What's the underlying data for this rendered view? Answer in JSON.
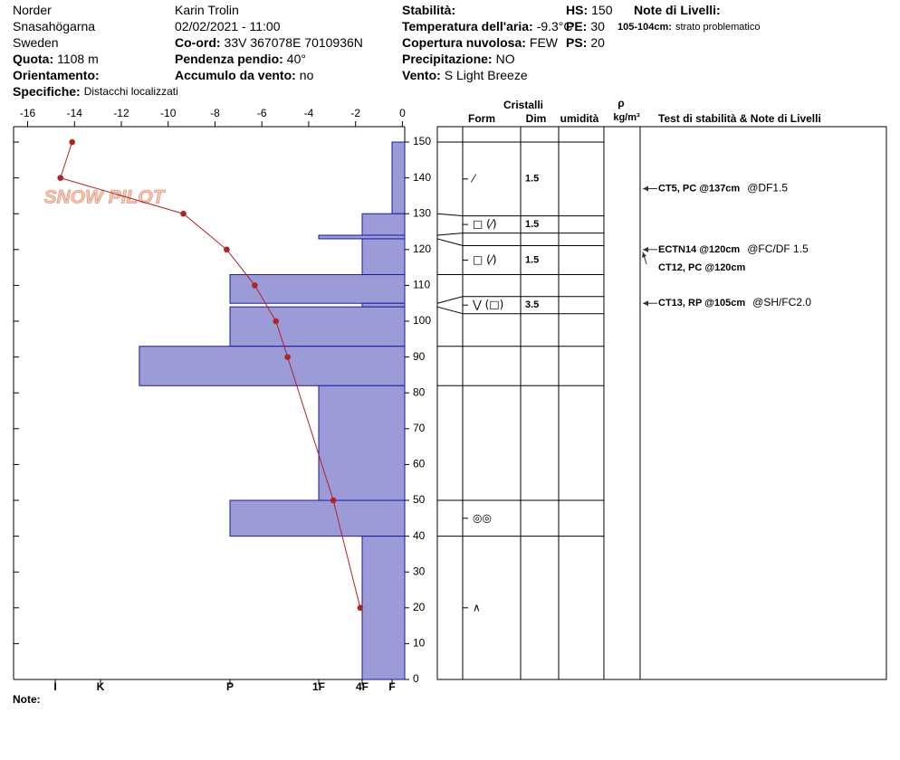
{
  "header": {
    "items": [
      {
        "value": "Norder"
      },
      {
        "value": "Snasahögarna"
      },
      {
        "value": "Sweden"
      },
      {
        "label": "Quota:",
        "value": "1108 m"
      },
      {
        "label": "Orientamento:"
      },
      {
        "label": "Specifiche:",
        "value": "Distacchi localizzati"
      },
      {
        "value": "Karin  Trolin"
      },
      {
        "value": "02/02/2021 - 11:00"
      },
      {
        "label": "Co-ord:",
        "value": "33V 367078E 7010936N"
      },
      {
        "label": "Pendenza pendio:",
        "value": "40°"
      },
      {
        "label": "Accumulo da vento:",
        "value": "no"
      },
      {
        "label": "Stabilità:"
      },
      {
        "label": "Temperatura dell'aria:",
        "value": "-9.3°C"
      },
      {
        "label": "Copertura nuvolosa:",
        "value": "FEW"
      },
      {
        "label": "Precipitazione:",
        "value": "NO"
      },
      {
        "label": "Vento:",
        "value": "S Light Breeze"
      },
      {
        "label": "HS:",
        "value": "150"
      },
      {
        "label": "PE:",
        "value": "30"
      },
      {
        "label": "PS:",
        "value": "20"
      },
      {
        "label": "Note di Livelli:"
      },
      {
        "label": "105-104cm:",
        "value": "strato problematico"
      }
    ]
  },
  "watermark": "SNOW PILOT",
  "chart_data": [
    {
      "type": "temperature-profile",
      "color": "#b22222",
      "depths": [
        150,
        140,
        130,
        120,
        110,
        100,
        90,
        50,
        20
      ],
      "temperatures": [
        -14.1,
        -14.6,
        -9.35,
        -7.5,
        -6.3,
        -5.4,
        -4.9,
        -2.95,
        -1.8
      ],
      "xlim": [
        -16.6,
        0.1
      ],
      "xticks": [
        -16,
        -14,
        -12,
        -10,
        -8,
        -6,
        -4,
        -2,
        0
      ],
      "ylim": [
        0,
        154.3
      ],
      "yticks": [
        0,
        10,
        20,
        30,
        40,
        50,
        60,
        70,
        80,
        90,
        100,
        110,
        120,
        130,
        140,
        150
      ]
    },
    {
      "type": "hardness-profile",
      "color": "#9b9bd8",
      "tops": [
        150,
        130,
        124,
        123,
        113,
        105,
        104,
        93,
        82,
        50,
        40
      ],
      "bottoms": [
        130,
        124,
        123,
        113,
        105,
        104,
        93,
        82,
        50,
        40,
        0
      ],
      "values": [
        1,
        2,
        3,
        2,
        4,
        2,
        4,
        4.7,
        3,
        4,
        2
      ],
      "xlim": [
        7,
        0
      ],
      "xticks": [
        {
          "value": 6,
          "label": "I"
        },
        {
          "value": 5,
          "label": "K"
        },
        {
          "value": 4,
          "label": "P"
        },
        {
          "value": 3,
          "label": "1F"
        },
        {
          "value": 2,
          "label": "4F"
        },
        {
          "value": 1,
          "label": "F"
        }
      ]
    }
  ],
  "table": {
    "headers": {
      "group": "Cristalli",
      "form": "Form",
      "size": "Dim",
      "moisture": "umidità",
      "density": "ρ",
      "density_unit": "kg/m³",
      "tests": "Test di stabilità & Note di Livelli"
    },
    "forms": [
      "⁄",
      "□ (⁄)",
      null,
      "□ (⁄)",
      null,
      "⋁ (□)",
      null,
      null,
      null,
      "◎◎",
      "∧"
    ],
    "sizes": [
      1.5,
      1.5,
      null,
      1.5,
      null,
      3.5,
      null,
      null,
      null,
      null,
      null
    ]
  },
  "tests": [
    {
      "depth": 137,
      "code": "CT5, PC @137cm",
      "note": "@DF1.5"
    },
    {
      "depth": 120,
      "code": "ECTN14 @120cm",
      "note": "@FC/DF 1.5"
    },
    {
      "depth": 120,
      "code": "CT12, PC @120cm"
    },
    {
      "depth": 105,
      "code": "CT13, RP @105cm",
      "note": "@SH/FC2.0"
    }
  ],
  "footer": {
    "note": "Note:"
  }
}
